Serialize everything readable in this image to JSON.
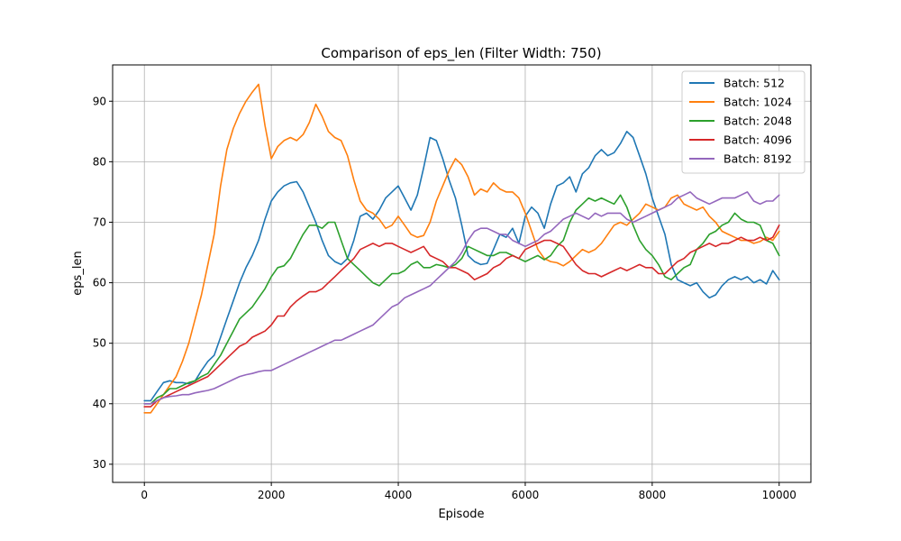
{
  "chart_data": {
    "type": "line",
    "title": "Comparison of eps_len (Filter Width: 750)",
    "xlabel": "Episode",
    "ylabel": "eps_len",
    "xlim": [
      -500,
      10500
    ],
    "ylim": [
      27,
      96
    ],
    "xticks": [
      0,
      2000,
      4000,
      6000,
      8000,
      10000
    ],
    "yticks": [
      30,
      40,
      50,
      60,
      70,
      80,
      90
    ],
    "grid": true,
    "legend_position": "top-right",
    "series": [
      {
        "name": "Batch: 512",
        "color": "#1f77b4",
        "x": [
          0,
          100,
          200,
          300,
          400,
          500,
          600,
          700,
          800,
          900,
          1000,
          1100,
          1200,
          1300,
          1400,
          1500,
          1600,
          1700,
          1800,
          1900,
          2000,
          2100,
          2200,
          2300,
          2400,
          2500,
          2600,
          2700,
          2800,
          2900,
          3000,
          3100,
          3200,
          3300,
          3400,
          3500,
          3600,
          3700,
          3800,
          3900,
          4000,
          4100,
          4200,
          4300,
          4400,
          4500,
          4600,
          4700,
          4800,
          4900,
          5000,
          5100,
          5200,
          5300,
          5400,
          5500,
          5600,
          5700,
          5800,
          5900,
          6000,
          6100,
          6200,
          6300,
          6400,
          6500,
          6600,
          6700,
          6800,
          6900,
          7000,
          7100,
          7200,
          7300,
          7400,
          7500,
          7600,
          7700,
          7800,
          7900,
          8000,
          8100,
          8200,
          8300,
          8400,
          8500,
          8600,
          8700,
          8800,
          8900,
          9000,
          9100,
          9200,
          9300,
          9400,
          9500,
          9600,
          9700,
          9800,
          9900,
          10000
        ],
        "values": [
          40.5,
          40.5,
          42.0,
          43.5,
          43.8,
          43.5,
          43.5,
          43.3,
          43.8,
          45.5,
          47.0,
          48.0,
          51.0,
          54.0,
          57.0,
          60.0,
          62.5,
          64.5,
          67.0,
          70.5,
          73.5,
          75.0,
          76.0,
          76.5,
          76.7,
          75.0,
          72.5,
          70.0,
          67.0,
          64.5,
          63.5,
          63.0,
          64.0,
          67.0,
          71.0,
          71.5,
          70.5,
          72.0,
          74.0,
          75.0,
          76.0,
          74.0,
          72.0,
          74.5,
          79.0,
          84.0,
          83.5,
          80.5,
          77.0,
          74.0,
          69.5,
          64.5,
          63.5,
          63.0,
          63.2,
          65.5,
          68.0,
          67.5,
          69.0,
          66.5,
          71.0,
          72.5,
          71.5,
          69.0,
          73.0,
          76.0,
          76.5,
          77.5,
          75.0,
          78.0,
          79.0,
          81.0,
          82.0,
          81.0,
          81.5,
          83.0,
          85.0,
          84.0,
          81.0,
          78.0,
          74.0,
          71.0,
          68.0,
          63.0,
          60.5,
          60.0,
          59.5,
          60.0,
          58.5,
          57.5,
          58.0,
          59.5,
          60.5,
          61.0,
          60.5,
          61.0,
          60.0,
          60.5,
          59.8,
          62.0,
          60.5
        ]
      },
      {
        "name": "Batch: 1024",
        "color": "#ff7f0e",
        "x": [
          0,
          100,
          200,
          300,
          400,
          500,
          600,
          700,
          800,
          900,
          1000,
          1100,
          1200,
          1300,
          1400,
          1500,
          1600,
          1700,
          1800,
          1900,
          2000,
          2100,
          2200,
          2300,
          2400,
          2500,
          2600,
          2700,
          2800,
          2900,
          3000,
          3100,
          3200,
          3300,
          3400,
          3500,
          3600,
          3700,
          3800,
          3900,
          4000,
          4100,
          4200,
          4300,
          4400,
          4500,
          4600,
          4700,
          4800,
          4900,
          5000,
          5100,
          5200,
          5300,
          5400,
          5500,
          5600,
          5700,
          5800,
          5900,
          6000,
          6100,
          6200,
          6300,
          6400,
          6500,
          6600,
          6700,
          6800,
          6900,
          7000,
          7100,
          7200,
          7300,
          7400,
          7500,
          7600,
          7700,
          7800,
          7900,
          8000,
          8100,
          8200,
          8300,
          8400,
          8500,
          8600,
          8700,
          8800,
          8900,
          9000,
          9100,
          9200,
          9300,
          9400,
          9500,
          9600,
          9700,
          9800,
          9900,
          10000
        ],
        "values": [
          38.5,
          38.5,
          40.0,
          41.5,
          43.0,
          44.5,
          47.0,
          50.0,
          54.0,
          58.0,
          63.0,
          68.0,
          76.0,
          82.0,
          85.5,
          88.0,
          90.0,
          91.5,
          92.8,
          86.0,
          80.5,
          82.5,
          83.5,
          84.0,
          83.5,
          84.5,
          86.5,
          89.5,
          87.5,
          85.0,
          84.0,
          83.5,
          81.0,
          77.0,
          73.5,
          72.0,
          71.5,
          70.5,
          69.0,
          69.5,
          71.0,
          69.5,
          68.0,
          67.5,
          67.8,
          70.0,
          73.5,
          76.0,
          78.5,
          80.5,
          79.5,
          77.5,
          74.5,
          75.5,
          75.0,
          76.5,
          75.5,
          75.0,
          75.0,
          74.0,
          71.5,
          68.5,
          65.5,
          64.0,
          63.5,
          63.3,
          62.8,
          63.5,
          64.5,
          65.5,
          65.0,
          65.5,
          66.5,
          68.0,
          69.5,
          70.0,
          69.5,
          70.5,
          71.5,
          73.0,
          72.5,
          72.0,
          72.5,
          74.0,
          74.5,
          73.0,
          72.5,
          72.0,
          72.5,
          71.0,
          70.0,
          68.5,
          68.0,
          67.5,
          67.0,
          67.0,
          66.5,
          66.8,
          67.5,
          67.0,
          68.5
        ]
      },
      {
        "name": "Batch: 2048",
        "color": "#2ca02c",
        "x": [
          0,
          100,
          200,
          300,
          400,
          500,
          600,
          700,
          800,
          900,
          1000,
          1100,
          1200,
          1300,
          1400,
          1500,
          1600,
          1700,
          1800,
          1900,
          2000,
          2100,
          2200,
          2300,
          2400,
          2500,
          2600,
          2700,
          2800,
          2900,
          3000,
          3100,
          3200,
          3300,
          3400,
          3500,
          3600,
          3700,
          3800,
          3900,
          4000,
          4100,
          4200,
          4300,
          4400,
          4500,
          4600,
          4700,
          4800,
          4900,
          5000,
          5100,
          5200,
          5300,
          5400,
          5500,
          5600,
          5700,
          5800,
          5900,
          6000,
          6100,
          6200,
          6300,
          6400,
          6500,
          6600,
          6700,
          6800,
          6900,
          7000,
          7100,
          7200,
          7300,
          7400,
          7500,
          7600,
          7700,
          7800,
          7900,
          8000,
          8100,
          8200,
          8300,
          8400,
          8500,
          8600,
          8700,
          8800,
          8900,
          9000,
          9100,
          9200,
          9300,
          9400,
          9500,
          9600,
          9700,
          9800,
          9900,
          10000
        ],
        "values": [
          40.0,
          40.0,
          41.0,
          41.5,
          42.5,
          42.5,
          43.0,
          43.5,
          43.8,
          44.5,
          45.0,
          46.5,
          48.0,
          50.0,
          52.0,
          54.0,
          55.0,
          56.0,
          57.5,
          59.0,
          61.0,
          62.5,
          62.8,
          64.0,
          66.0,
          68.0,
          69.5,
          69.5,
          69.0,
          70.0,
          70.0,
          67.0,
          64.0,
          63.0,
          62.0,
          61.0,
          60.0,
          59.5,
          60.5,
          61.5,
          61.5,
          62.0,
          63.0,
          63.5,
          62.5,
          62.5,
          63.0,
          62.8,
          62.5,
          63.0,
          64.0,
          66.0,
          65.5,
          65.0,
          64.5,
          64.5,
          65.0,
          65.0,
          64.5,
          64.0,
          63.5,
          64.0,
          64.5,
          63.8,
          64.5,
          66.0,
          67.0,
          70.0,
          72.0,
          73.0,
          74.0,
          73.5,
          74.0,
          73.5,
          73.0,
          74.5,
          72.5,
          69.5,
          67.0,
          65.5,
          64.5,
          63.0,
          61.0,
          60.5,
          61.5,
          62.5,
          63.0,
          65.5,
          66.5,
          68.0,
          68.5,
          69.5,
          70.0,
          71.5,
          70.5,
          70.0,
          70.0,
          69.5,
          67.0,
          66.5,
          64.5
        ]
      },
      {
        "name": "Batch: 4096",
        "color": "#d62728",
        "x": [
          0,
          100,
          200,
          300,
          400,
          500,
          600,
          700,
          800,
          900,
          1000,
          1100,
          1200,
          1300,
          1400,
          1500,
          1600,
          1700,
          1800,
          1900,
          2000,
          2100,
          2200,
          2300,
          2400,
          2500,
          2600,
          2700,
          2800,
          2900,
          3000,
          3100,
          3200,
          3300,
          3400,
          3500,
          3600,
          3700,
          3800,
          3900,
          4000,
          4100,
          4200,
          4300,
          4400,
          4500,
          4600,
          4700,
          4800,
          4900,
          5000,
          5100,
          5200,
          5300,
          5400,
          5500,
          5600,
          5700,
          5800,
          5900,
          6000,
          6100,
          6200,
          6300,
          6400,
          6500,
          6600,
          6700,
          6800,
          6900,
          7000,
          7100,
          7200,
          7300,
          7400,
          7500,
          7600,
          7700,
          7800,
          7900,
          8000,
          8100,
          8200,
          8300,
          8400,
          8500,
          8600,
          8700,
          8800,
          8900,
          9000,
          9100,
          9200,
          9300,
          9400,
          9500,
          9600,
          9700,
          9800,
          9900,
          10000
        ],
        "values": [
          39.5,
          39.5,
          40.5,
          41.0,
          41.5,
          42.0,
          42.5,
          43.0,
          43.5,
          44.0,
          44.5,
          45.5,
          46.5,
          47.5,
          48.5,
          49.5,
          50.0,
          51.0,
          51.5,
          52.0,
          53.0,
          54.5,
          54.5,
          56.0,
          57.0,
          57.8,
          58.5,
          58.5,
          59.0,
          60.0,
          61.0,
          62.0,
          63.0,
          64.0,
          65.5,
          66.0,
          66.5,
          66.0,
          66.5,
          66.5,
          66.0,
          65.5,
          65.0,
          65.5,
          66.0,
          64.5,
          64.0,
          63.5,
          62.5,
          62.5,
          62.0,
          61.5,
          60.5,
          61.0,
          61.5,
          62.5,
          63.0,
          64.0,
          64.5,
          64.0,
          65.5,
          66.0,
          66.5,
          67.0,
          67.0,
          66.5,
          66.0,
          64.5,
          63.0,
          62.0,
          61.5,
          61.5,
          61.0,
          61.5,
          62.0,
          62.5,
          62.0,
          62.5,
          63.0,
          62.5,
          62.5,
          61.5,
          61.5,
          62.5,
          63.5,
          64.0,
          65.0,
          65.5,
          66.0,
          66.5,
          66.0,
          66.5,
          66.5,
          67.0,
          67.5,
          67.0,
          67.0,
          67.5,
          67.0,
          67.5,
          69.5
        ]
      },
      {
        "name": "Batch: 8192",
        "color": "#9467bd",
        "x": [
          0,
          100,
          200,
          300,
          400,
          500,
          600,
          700,
          800,
          900,
          1000,
          1100,
          1200,
          1300,
          1400,
          1500,
          1600,
          1700,
          1800,
          1900,
          2000,
          2100,
          2200,
          2300,
          2400,
          2500,
          2600,
          2700,
          2800,
          2900,
          3000,
          3100,
          3200,
          3300,
          3400,
          3500,
          3600,
          3700,
          3800,
          3900,
          4000,
          4100,
          4200,
          4300,
          4400,
          4500,
          4600,
          4700,
          4800,
          4900,
          5000,
          5100,
          5200,
          5300,
          5400,
          5500,
          5600,
          5700,
          5800,
          5900,
          6000,
          6100,
          6200,
          6300,
          6400,
          6500,
          6600,
          6700,
          6800,
          6900,
          7000,
          7100,
          7200,
          7300,
          7400,
          7500,
          7600,
          7700,
          7800,
          7900,
          8000,
          8100,
          8200,
          8300,
          8400,
          8500,
          8600,
          8700,
          8800,
          8900,
          9000,
          9100,
          9200,
          9300,
          9400,
          9500,
          9600,
          9700,
          9800,
          9900,
          10000
        ],
        "values": [
          40.0,
          40.0,
          40.5,
          41.0,
          41.2,
          41.3,
          41.5,
          41.5,
          41.8,
          42.0,
          42.2,
          42.5,
          43.0,
          43.5,
          44.0,
          44.5,
          44.8,
          45.0,
          45.3,
          45.5,
          45.5,
          46.0,
          46.5,
          47.0,
          47.5,
          48.0,
          48.5,
          49.0,
          49.5,
          50.0,
          50.5,
          50.5,
          51.0,
          51.5,
          52.0,
          52.5,
          53.0,
          54.0,
          55.0,
          56.0,
          56.5,
          57.5,
          58.0,
          58.5,
          59.0,
          59.5,
          60.5,
          61.5,
          62.5,
          63.5,
          65.0,
          67.0,
          68.5,
          69.0,
          69.0,
          68.5,
          68.0,
          68.0,
          67.0,
          66.5,
          66.0,
          66.5,
          67.0,
          68.0,
          68.5,
          69.5,
          70.5,
          71.0,
          71.5,
          71.0,
          70.5,
          71.5,
          71.0,
          71.5,
          71.5,
          71.5,
          70.5,
          70.0,
          70.5,
          71.0,
          71.5,
          72.0,
          72.5,
          73.0,
          74.0,
          74.5,
          75.0,
          74.0,
          73.5,
          73.0,
          73.5,
          74.0,
          74.0,
          74.0,
          74.5,
          75.0,
          73.5,
          73.0,
          73.5,
          73.5,
          74.5
        ]
      }
    ]
  }
}
